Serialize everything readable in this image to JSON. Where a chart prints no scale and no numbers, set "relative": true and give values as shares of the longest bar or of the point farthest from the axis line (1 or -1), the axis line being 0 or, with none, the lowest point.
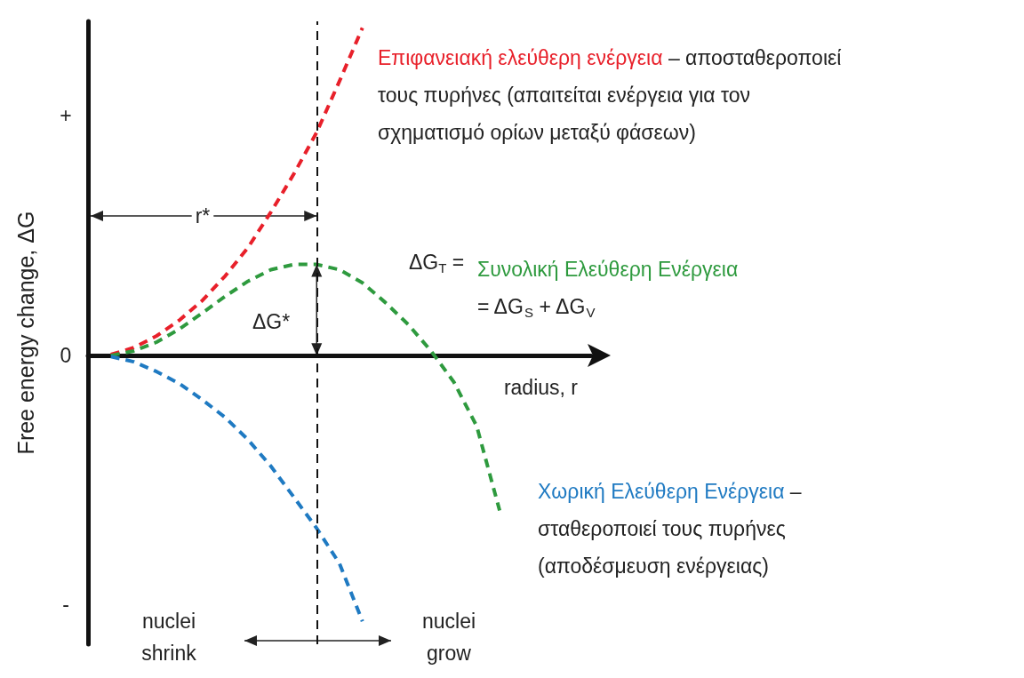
{
  "chart_data": {
    "type": "line",
    "relative": true,
    "xlabel": "radius, r",
    "ylabel": "Free energy change, ΔG",
    "grid": false,
    "legend": false,
    "marker": "none",
    "line_style": "dashed",
    "categories": [
      null,
      null,
      null,
      null,
      null,
      null,
      null,
      null,
      null,
      null,
      null,
      null,
      null,
      null,
      null,
      null,
      null,
      null,
      null,
      null,
      null,
      null,
      null
    ],
    "series": [
      {
        "name": "Επιφανειακή ελεύθερη ενέργεια",
        "color": "#e8202a",
        "values": [
          null,
          0.003,
          0.024,
          0.06,
          0.108,
          0.168,
          0.243,
          0.33,
          0.438,
          0.554,
          0.681,
          0.838,
          1.0,
          null,
          null,
          null,
          null,
          null,
          null,
          null,
          null,
          null,
          null
        ]
      },
      {
        "name": "Συνολική Ελεύθερη Ενέργεια",
        "color": "#2e9a3e",
        "values": [
          null,
          0,
          0.014,
          0.041,
          0.081,
          0.13,
          0.181,
          0.227,
          0.262,
          0.278,
          0.278,
          0.262,
          0.222,
          0.162,
          0.095,
          0.014,
          -0.081,
          -0.216,
          -0.473,
          null,
          null,
          null,
          null
        ]
      },
      {
        "name": "Χωρική Ελεύθερη Ενέργεια",
        "color": "#1f7ac2",
        "values": [
          null,
          -0.003,
          -0.019,
          -0.049,
          -0.086,
          -0.135,
          -0.189,
          -0.257,
          -0.338,
          -0.432,
          -0.527,
          -0.635,
          -0.811,
          null,
          null,
          null,
          null,
          null,
          null,
          null,
          null,
          null,
          null
        ]
      }
    ],
    "annotations": [
      " – αποσταθεροποιεί\nτους πυρήνες (απαιτείται ενέργεια για τον\nσχηματισμό ορίων μεταξύ φάσεων)",
      "\n= ΔG$_{S}$ + ΔG$_{V}$",
      " –\nσταθεροποιεί τους πυρήνες\n(αποδέσμευση ενέργειας)",
      "ΔG$_{T}$ =",
      "r*",
      "ΔG*",
      "nuclei\nshrink",
      "nuclei\ngrow",
      "+",
      "0",
      "-"
    ]
  }
}
